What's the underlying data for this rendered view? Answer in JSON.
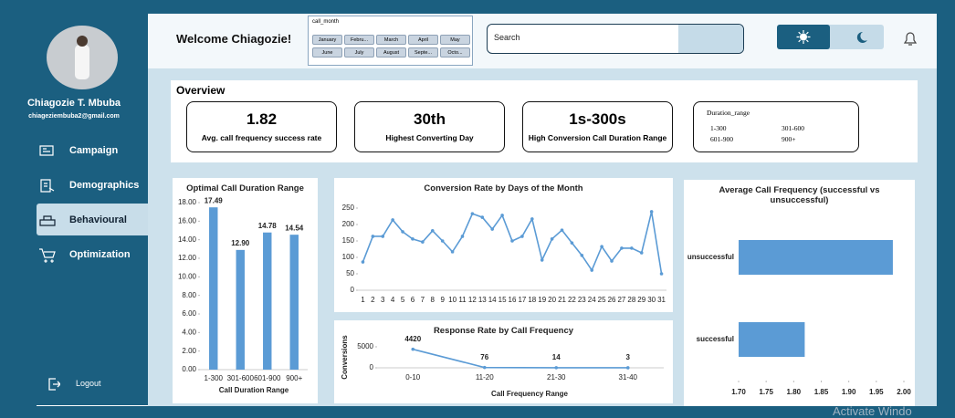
{
  "sidebar": {
    "name": "Chiagozie T. Mbuba",
    "email": "chiageziembuba2@gmail.com",
    "nav": [
      "Campaign",
      "Demographics",
      "Behavioural",
      "Optimization"
    ],
    "logout": "Logout"
  },
  "header": {
    "welcome": "Welcome Chiagozie!",
    "month_slicer": {
      "title": "call_month",
      "items": [
        "January",
        "Febru...",
        "March",
        "April",
        "May",
        "June",
        "July",
        "August",
        "Septe...",
        "Octo..."
      ]
    },
    "search": "Search"
  },
  "overview": {
    "title": "Overview",
    "kpis": [
      {
        "value": 1.82,
        "label": "Avg. call frequency success rate"
      },
      {
        "value": "30th",
        "label": "Highest Converting Day"
      },
      {
        "value": "1s-300s",
        "label": "High Conversion Call Duration Range"
      }
    ],
    "duration_slicer": {
      "title": "Duration_range",
      "items": [
        "1-300",
        "301-600",
        "601-900",
        "900+"
      ]
    }
  },
  "chart_data": [
    {
      "type": "bar",
      "title": "Optimal Call Duration Range",
      "x_label": "Call Duration Range",
      "categories": [
        "1-300",
        "301-600",
        "601-900",
        "900+"
      ],
      "values": [
        17.49,
        12.9,
        14.78,
        14.54
      ],
      "value_labels": [
        "17.49",
        "12.90",
        "14.78",
        "14.54"
      ],
      "color": "#5b9bd5",
      "ylim": [
        0,
        18
      ],
      "yticks": [
        {
          "value": 0,
          "label": "0.00"
        },
        {
          "value": 2,
          "label": "2.00"
        },
        {
          "value": 4,
          "label": "4.00"
        },
        {
          "value": 6,
          "label": "6.00"
        },
        {
          "value": 8,
          "label": "8.00"
        },
        {
          "value": 10,
          "label": "10.00"
        },
        {
          "value": 12,
          "label": "12.00"
        },
        {
          "value": 14,
          "label": "14.00"
        },
        {
          "value": 16,
          "label": "16.00"
        },
        {
          "value": 18,
          "label": "18.00"
        }
      ]
    },
    {
      "type": "line",
      "title": "Conversion Rate by Days of the Month",
      "categories": [
        1,
        2,
        3,
        4,
        5,
        6,
        7,
        8,
        9,
        10,
        11,
        12,
        13,
        14,
        15,
        16,
        17,
        18,
        19,
        20,
        21,
        22,
        23,
        24,
        25,
        26,
        27,
        28,
        29,
        30,
        31
      ],
      "values": [
        86,
        164,
        164,
        214,
        178,
        156,
        147,
        181,
        150,
        117,
        164,
        233,
        222,
        186,
        228,
        150,
        164,
        217,
        92,
        156,
        183,
        144,
        106,
        61,
        133,
        89,
        128,
        128,
        114,
        239,
        50
      ],
      "color": "#5b9bd5",
      "ylim": [
        0,
        250
      ],
      "yticks": [
        0,
        50,
        100,
        150,
        200,
        250
      ]
    },
    {
      "type": "line",
      "title": "Response Rate by Call Frequency",
      "x_label": "Call Frequency Range",
      "y_label": "Conversions",
      "categories": [
        "0-10",
        "11-20",
        "21-30",
        "31-40"
      ],
      "values": [
        4420,
        76,
        14,
        3
      ],
      "data_labels": true,
      "color": "#5b9bd5",
      "ylim": [
        0,
        5000
      ],
      "yticks": [
        0,
        5000
      ]
    },
    {
      "type": "barh",
      "title": "Average Call Frequency (successful vs unsuccessful)",
      "categories": [
        "unsuccessful",
        "successful"
      ],
      "values": [
        1.98,
        1.82
      ],
      "color": "#5b9bd5",
      "xlim": [
        1.7,
        2.0
      ],
      "xticks": [
        {
          "value": 1.7,
          "label": "1.70"
        },
        {
          "value": 1.75,
          "label": "1.75"
        },
        {
          "value": 1.8,
          "label": "1.80"
        },
        {
          "value": 1.85,
          "label": "1.85"
        },
        {
          "value": 1.9,
          "label": "1.90"
        },
        {
          "value": 1.95,
          "label": "1.95"
        },
        {
          "value": 2.0,
          "label": "2.00"
        }
      ]
    }
  ],
  "watermark": "Activate Windo"
}
